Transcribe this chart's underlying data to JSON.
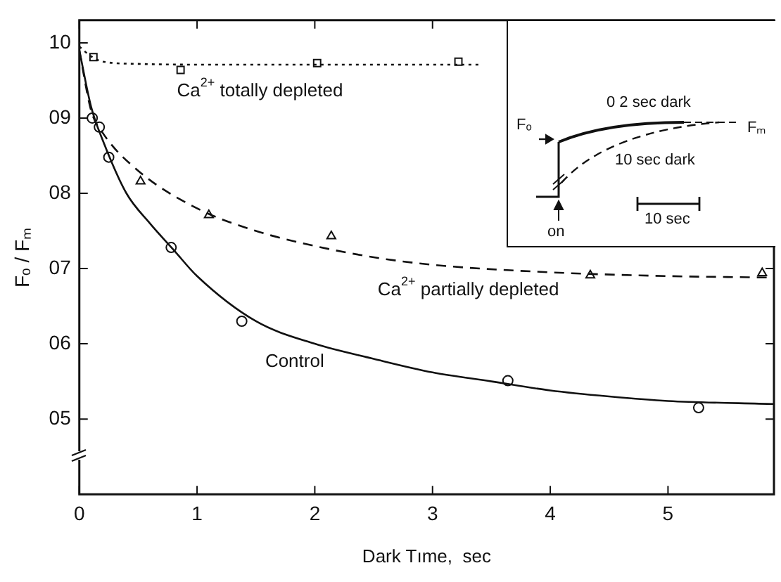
{
  "chart_data": {
    "type": "scatter",
    "xlabel": "Dark Tıme,  sec",
    "ylabel": "Fₒ / Fₘ",
    "xlim": [
      0,
      5.9
    ],
    "xticks": [
      0,
      1,
      2,
      3,
      4,
      5
    ],
    "ylim": [
      4.0,
      10.3
    ],
    "yticks": [
      {
        "value": 5,
        "label": "05"
      },
      {
        "value": 6,
        "label": "06"
      },
      {
        "value": 7,
        "label": "07"
      },
      {
        "value": 8,
        "label": "08"
      },
      {
        "value": 9,
        "label": "09"
      },
      10
    ],
    "grid": false,
    "legend": false,
    "series": [
      {
        "marker": "square",
        "color": "#111111",
        "x": [
          0.12,
          0.86,
          2.02,
          3.22
        ],
        "values": [
          9.81,
          9.64,
          9.73,
          9.75
        ]
      },
      {
        "marker": "triangle",
        "color": "#111111",
        "x": [
          0.52,
          1.1,
          2.14,
          4.34,
          5.8
        ],
        "values": [
          8.16,
          7.71,
          7.43,
          6.91,
          6.94
        ]
      },
      {
        "marker": "circle",
        "color": "#111111",
        "x": [
          0.11,
          0.17,
          0.25,
          0.78,
          1.38,
          3.64,
          5.26
        ],
        "values": [
          9.0,
          8.88,
          8.48,
          7.28,
          6.3,
          5.51,
          5.15
        ]
      },
      {
        "type": "line",
        "line_style": "dotted",
        "color": "#111111",
        "x": [
          0,
          0.1,
          0.2,
          0.5,
          1,
          2,
          3.4
        ],
        "values": [
          9.95,
          9.82,
          9.75,
          9.72,
          9.71,
          9.71,
          9.71
        ]
      },
      {
        "type": "line",
        "line_style": "dashed",
        "color": "#111111",
        "x": [
          0,
          0.1,
          0.2,
          0.5,
          1,
          1.5,
          2,
          2.5,
          3,
          4,
          5,
          5.9
        ],
        "values": [
          9.9,
          9.1,
          8.8,
          8.3,
          7.8,
          7.5,
          7.3,
          7.15,
          7.05,
          6.95,
          6.9,
          6.88
        ]
      },
      {
        "type": "line",
        "line_style": "solid",
        "color": "#111111",
        "x": [
          0,
          0.1,
          0.2,
          0.4,
          0.6,
          0.8,
          1,
          1.5,
          2,
          2.5,
          3,
          3.5,
          4,
          4.5,
          5,
          5.9
        ],
        "values": [
          9.9,
          9.15,
          8.7,
          8.0,
          7.6,
          7.25,
          6.9,
          6.3,
          6.0,
          5.8,
          5.62,
          5.5,
          5.38,
          5.3,
          5.24,
          5.2
        ]
      }
    ],
    "annotations": [
      "Ca$^{2+}$ totally depleted",
      "Ca$^{2+}$ partially depleted",
      "Control",
      "Fₒ",
      "0 2 sec dark",
      "10 sec dark",
      "Fₘ",
      "10 sec",
      "on"
    ]
  }
}
